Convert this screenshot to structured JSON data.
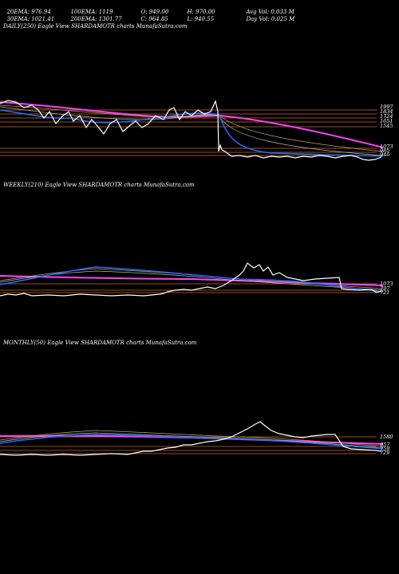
{
  "header": {
    "row1": [
      "20EMA: 976.94",
      "100EMA: 1119",
      "O: 949.00",
      "H: 970.00",
      "Avg Vol: 0.033 M"
    ],
    "row2": [
      "30EMA: 1021.41",
      "200EMA: 1301.77",
      "C: 964.85",
      "L: 940.55",
      "Day Vol: 0.025 M"
    ]
  },
  "colors": {
    "background": "#000000",
    "price": "#ffffff",
    "ema_short": "#1e6bff",
    "ema_long": "#ff40ff",
    "ema_mid": "#c8a060",
    "grid": "#d2691e"
  },
  "chart_data": [
    {
      "type": "line",
      "title": "DAILY(250) Eagle  View  SHARDAMOTR charts MunafaSutra.com",
      "levels": [
        "1997",
        "1834",
        "1724",
        "1651",
        "1545",
        "1073",
        "985",
        "946"
      ]
    },
    {
      "type": "line",
      "title": "WEEKLY(210) Eagle  View  SHARDAMOTR charts MunafaSutra.com",
      "levels": [
        "1073",
        "797",
        "721"
      ]
    },
    {
      "type": "line",
      "title": "MONTHLY(50) Eagle  View  SHARDAMOTR charts MunafaSutra.com",
      "levels": [
        "1580",
        "957",
        "759",
        "729"
      ]
    }
  ]
}
